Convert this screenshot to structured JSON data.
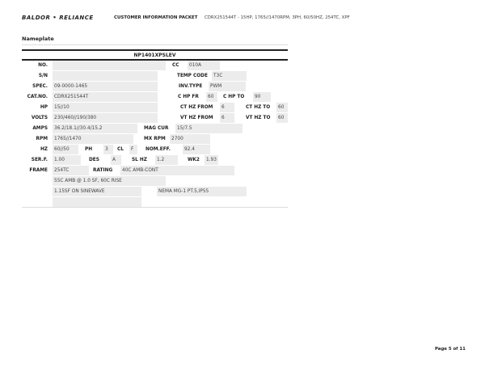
{
  "header": {
    "logo": "BALDOR • RELIANCE",
    "packet_title": "CUSTOMER INFORMATION PACKET",
    "description": "CDRX251544T - 15HP, 1765//1470RPM, 3PH, 60/50HZ, 254TC, XPF"
  },
  "section_title": "Nameplate",
  "nameplate": {
    "title": "NP1401XPSLEV",
    "no_label": "NO.",
    "no": "",
    "cc_label": "CC",
    "cc": "010A",
    "sn_label": "S/N",
    "sn": "",
    "temp_code_label": "TEMP CODE",
    "temp_code": "T3C",
    "spec_label": "SPEC.",
    "spec": "09-0000-1465",
    "inv_type_label": "INV.TYPE",
    "inv_type": "PWM",
    "catno_label": "CAT.NO.",
    "catno": "CDRX251544T",
    "chp_fr_label": "C HP FR",
    "chp_fr": "60",
    "chp_to_label": "C HP TO",
    "chp_to": "90",
    "hp_label": "HP",
    "hp": "15//10",
    "ct_hz_from_label": "CT HZ FROM",
    "ct_hz_from": "6",
    "ct_hz_to_label": "CT HZ TO",
    "ct_hz_to": "60",
    "volts_label": "VOLTS",
    "volts": "230/460//190/380",
    "vt_hz_from_label": "VT HZ FROM",
    "vt_hz_from": "6",
    "vt_hz_to_label": "VT HZ TO",
    "vt_hz_to": "60",
    "amps_label": "AMPS",
    "amps": "36.2/18.1//30.4/15.2",
    "mag_cur_label": "MAG CUR",
    "mag_cur": "15/7.5",
    "rpm_label": "RPM",
    "rpm": "1765//1470",
    "mx_rpm_label": "MX RPM",
    "mx_rpm": "2700",
    "hz_label": "HZ",
    "hz": "60//50",
    "ph_label": "PH",
    "ph": "3",
    "cl_label": "CL",
    "cl": "F",
    "nom_eff_label": "NOM.EFF.",
    "nom_eff": "92.4",
    "serf_label": "SER.F.",
    "serf": "1.00",
    "des_label": "DES",
    "des": "A",
    "sl_hz_label": "SL HZ",
    "sl_hz": "1.2",
    "wk2_label": "WK2",
    "wk2": "1.93",
    "frame_label": "FRAME",
    "frame": "254TC",
    "rating_label": "RATING",
    "rating": "40C AMB-CONT",
    "note1": "55C AMB @ 1.0 SF, 60C RISE",
    "note2": "1.15SF ON SINEWAVE",
    "note3": "NEMA MG-1 PT.5,IP55"
  },
  "footer": {
    "page": "Page 5 of 11"
  }
}
